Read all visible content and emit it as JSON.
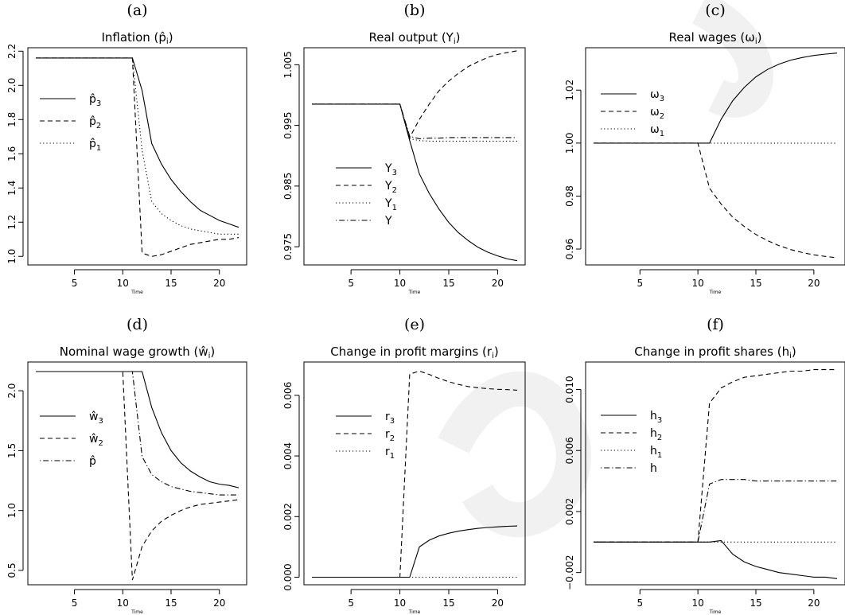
{
  "chart_data": [
    {
      "type": "line",
      "letter": "(a)",
      "title": "Inflation (p̂",
      "title_sub": "i",
      "xlabel": "Time",
      "ylabel": "",
      "xlim": [
        1,
        22
      ],
      "ylim": [
        0.95,
        2.22
      ],
      "xticks": [
        5,
        10,
        15,
        20
      ],
      "yticks": [
        1.0,
        1.2,
        1.4,
        1.6,
        1.8,
        2.0,
        2.2
      ],
      "ytick_labels": [
        "1.0",
        "1.2",
        "1.4",
        "1.6",
        "1.8",
        "2.0",
        "2.2"
      ],
      "legend_position": "top-left",
      "x": [
        1,
        2,
        3,
        4,
        5,
        6,
        7,
        8,
        9,
        10,
        11,
        12,
        13,
        14,
        15,
        16,
        17,
        18,
        19,
        20,
        21,
        22
      ],
      "series": [
        {
          "name": "p̂",
          "name_sub": "3",
          "style": "solid",
          "values": [
            2.16,
            2.16,
            2.16,
            2.16,
            2.16,
            2.16,
            2.16,
            2.16,
            2.16,
            2.16,
            2.16,
            1.97,
            1.66,
            1.54,
            1.45,
            1.38,
            1.32,
            1.27,
            1.24,
            1.21,
            1.19,
            1.17
          ]
        },
        {
          "name": "p̂",
          "name_sub": "2",
          "style": "dashed",
          "values": [
            2.16,
            2.16,
            2.16,
            2.16,
            2.16,
            2.16,
            2.16,
            2.16,
            2.16,
            2.16,
            2.16,
            1.02,
            1.0,
            1.01,
            1.03,
            1.05,
            1.07,
            1.08,
            1.09,
            1.1,
            1.1,
            1.11
          ]
        },
        {
          "name": "p̂",
          "name_sub": "1",
          "style": "dotted",
          "values": [
            2.16,
            2.16,
            2.16,
            2.16,
            2.16,
            2.16,
            2.16,
            2.16,
            2.16,
            2.16,
            2.16,
            1.62,
            1.32,
            1.25,
            1.21,
            1.18,
            1.16,
            1.15,
            1.14,
            1.13,
            1.13,
            1.13
          ]
        }
      ]
    },
    {
      "type": "line",
      "letter": "(b)",
      "title": "Real output (Y",
      "title_sub": "i",
      "xlabel": "Time",
      "ylabel": "",
      "xlim": [
        1,
        22
      ],
      "ylim": [
        0.972,
        1.0078
      ],
      "xticks": [
        5,
        10,
        15,
        20
      ],
      "yticks": [
        0.975,
        0.985,
        0.995,
        1.005
      ],
      "ytick_labels": [
        "0.975",
        "0.985",
        "0.995",
        "1.005"
      ],
      "legend_position": "center-left",
      "x": [
        1,
        2,
        3,
        4,
        5,
        6,
        7,
        8,
        9,
        10,
        11,
        12,
        13,
        14,
        15,
        16,
        17,
        18,
        19,
        20,
        21,
        22
      ],
      "series": [
        {
          "name": "Y",
          "name_sub": "3",
          "style": "solid",
          "values": [
            0.9985,
            0.9985,
            0.9985,
            0.9985,
            0.9985,
            0.9985,
            0.9985,
            0.9985,
            0.9985,
            0.9985,
            0.9925,
            0.987,
            0.9838,
            0.9812,
            0.979,
            0.9773,
            0.976,
            0.9749,
            0.9741,
            0.9735,
            0.973,
            0.9727
          ]
        },
        {
          "name": "Y",
          "name_sub": "2",
          "style": "dashed",
          "values": [
            0.9985,
            0.9985,
            0.9985,
            0.9985,
            0.9985,
            0.9985,
            0.9985,
            0.9985,
            0.9985,
            0.9985,
            0.993,
            0.996,
            0.9985,
            1.0007,
            1.0023,
            1.0036,
            1.0047,
            1.0055,
            1.0062,
            1.0067,
            1.007,
            1.0073
          ]
        },
        {
          "name": "Y",
          "name_sub": "1",
          "style": "dotted",
          "values": [
            0.9985,
            0.9985,
            0.9985,
            0.9985,
            0.9985,
            0.9985,
            0.9985,
            0.9985,
            0.9985,
            0.9985,
            0.9928,
            0.9925,
            0.9924,
            0.9924,
            0.9924,
            0.9924,
            0.9924,
            0.9924,
            0.9924,
            0.9924,
            0.9924,
            0.9924
          ]
        },
        {
          "name": "Y",
          "name_sub": "",
          "style": "dotdash",
          "values": [
            0.9985,
            0.9985,
            0.9985,
            0.9985,
            0.9985,
            0.9985,
            0.9985,
            0.9985,
            0.9985,
            0.9985,
            0.9932,
            0.9928,
            0.9929,
            0.9929,
            0.993,
            0.993,
            0.993,
            0.993,
            0.993,
            0.993,
            0.993,
            0.993
          ]
        }
      ]
    },
    {
      "type": "line",
      "letter": "(c)",
      "title": "Real wages (ω",
      "title_sub": "i",
      "xlabel": "Time",
      "ylabel": "",
      "xlim": [
        1,
        22
      ],
      "ylim": [
        0.954,
        1.036
      ],
      "xticks": [
        5,
        10,
        15,
        20
      ],
      "yticks": [
        0.96,
        0.98,
        1.0,
        1.02
      ],
      "ytick_labels": [
        "0.96",
        "0.98",
        "1.00",
        "1.02"
      ],
      "legend_position": "top-left",
      "x": [
        1,
        2,
        3,
        4,
        5,
        6,
        7,
        8,
        9,
        10,
        11,
        12,
        13,
        14,
        15,
        16,
        17,
        18,
        19,
        20,
        21,
        22
      ],
      "series": [
        {
          "name": "ω",
          "name_sub": "3",
          "style": "solid",
          "values": [
            1.0,
            1.0,
            1.0,
            1.0,
            1.0,
            1.0,
            1.0,
            1.0,
            1.0,
            1.0,
            1.0,
            1.009,
            1.016,
            1.021,
            1.025,
            1.0278,
            1.0298,
            1.0313,
            1.0323,
            1.0331,
            1.0336,
            1.034
          ]
        },
        {
          "name": "ω",
          "name_sub": "2",
          "style": "dashed",
          "values": [
            1.0,
            1.0,
            1.0,
            1.0,
            1.0,
            1.0,
            1.0,
            1.0,
            1.0,
            1.0,
            0.983,
            0.977,
            0.972,
            0.9685,
            0.9655,
            0.9632,
            0.9613,
            0.9598,
            0.9587,
            0.9578,
            0.9572,
            0.9567
          ]
        },
        {
          "name": "ω",
          "name_sub": "1",
          "style": "dotted",
          "values": [
            1.0,
            1.0,
            1.0,
            1.0,
            1.0,
            1.0,
            1.0,
            1.0,
            1.0,
            1.0,
            1.0,
            1.0,
            1.0,
            1.0,
            1.0,
            1.0,
            1.0,
            1.0,
            1.0,
            1.0,
            1.0,
            1.0
          ]
        }
      ]
    },
    {
      "type": "line",
      "letter": "(d)",
      "title": "Nominal wage growth (ŵ",
      "title_sub": "i",
      "xlabel": "Time",
      "ylabel": "",
      "xlim": [
        1,
        22
      ],
      "ylim": [
        0.38,
        2.24
      ],
      "xticks": [
        5,
        10,
        15,
        20
      ],
      "yticks": [
        0.5,
        1.0,
        1.5,
        2.0
      ],
      "ytick_labels": [
        "0.5",
        "1.0",
        "1.5",
        "2.0"
      ],
      "legend_position": "top-left",
      "x": [
        1,
        2,
        3,
        4,
        5,
        6,
        7,
        8,
        9,
        10,
        11,
        12,
        13,
        14,
        15,
        16,
        17,
        18,
        19,
        20,
        21,
        22
      ],
      "series": [
        {
          "name": "ŵ",
          "name_sub": "3",
          "style": "solid",
          "values": [
            2.16,
            2.16,
            2.16,
            2.16,
            2.16,
            2.16,
            2.16,
            2.16,
            2.16,
            2.16,
            2.16,
            2.16,
            1.86,
            1.65,
            1.5,
            1.4,
            1.33,
            1.28,
            1.24,
            1.22,
            1.21,
            1.19
          ]
        },
        {
          "name": "ŵ",
          "name_sub": "2",
          "style": "dashed",
          "values": [
            2.16,
            2.16,
            2.16,
            2.16,
            2.16,
            2.16,
            2.16,
            2.16,
            2.16,
            2.16,
            0.42,
            0.7,
            0.83,
            0.91,
            0.96,
            1.0,
            1.03,
            1.05,
            1.06,
            1.07,
            1.08,
            1.09
          ]
        },
        {
          "name": "p̂",
          "name_sub": "",
          "style": "dotdash",
          "values": [
            2.16,
            2.16,
            2.16,
            2.16,
            2.16,
            2.16,
            2.16,
            2.16,
            2.16,
            2.16,
            2.16,
            1.45,
            1.3,
            1.24,
            1.2,
            1.18,
            1.16,
            1.15,
            1.14,
            1.13,
            1.13,
            1.13
          ]
        }
      ]
    },
    {
      "type": "line",
      "letter": "(e)",
      "title": "Change in profit margins (r",
      "title_sub": "i",
      "xlabel": "Time",
      "ylabel": "",
      "xlim": [
        1,
        22
      ],
      "ylim": [
        -0.00025,
        0.0071
      ],
      "xticks": [
        5,
        10,
        15,
        20
      ],
      "yticks": [
        0.0,
        0.002,
        0.004,
        0.006
      ],
      "ytick_labels": [
        "0.000",
        "0.002",
        "0.004",
        "0.006"
      ],
      "legend_position": "top-left",
      "x": [
        1,
        2,
        3,
        4,
        5,
        6,
        7,
        8,
        9,
        10,
        11,
        12,
        13,
        14,
        15,
        16,
        17,
        18,
        19,
        20,
        21,
        22
      ],
      "series": [
        {
          "name": "r",
          "name_sub": "3",
          "style": "solid",
          "values": [
            0,
            0,
            0,
            0,
            0,
            0,
            0,
            0,
            0,
            0,
            0,
            0.001,
            0.00122,
            0.00136,
            0.00145,
            0.00152,
            0.00157,
            0.00161,
            0.00164,
            0.00166,
            0.00168,
            0.00169
          ]
        },
        {
          "name": "r",
          "name_sub": "2",
          "style": "dashed",
          "values": [
            0,
            0,
            0,
            0,
            0,
            0,
            0,
            0,
            0,
            0,
            0.0067,
            0.0068,
            0.00669,
            0.00656,
            0.00645,
            0.00636,
            0.00629,
            0.00625,
            0.00622,
            0.0062,
            0.00619,
            0.00617
          ]
        },
        {
          "name": "r",
          "name_sub": "1",
          "style": "dotted",
          "values": [
            0,
            0,
            0,
            0,
            0,
            0,
            0,
            0,
            0,
            0,
            0,
            0,
            0,
            0,
            0,
            0,
            0,
            0,
            0,
            0,
            0,
            0
          ]
        }
      ]
    },
    {
      "type": "line",
      "letter": "(f)",
      "title": "Change in profit shares (h",
      "title_sub": "i",
      "xlabel": "Time",
      "ylabel": "",
      "xlim": [
        1,
        22
      ],
      "ylim": [
        -0.0028,
        0.0118
      ],
      "xticks": [
        5,
        10,
        15,
        20
      ],
      "yticks": [
        -0.002,
        0.002,
        0.006,
        0.01
      ],
      "ytick_labels": [
        "−0.002",
        "0.002",
        "0.006",
        "0.010"
      ],
      "legend_position": "top-left",
      "x": [
        1,
        2,
        3,
        4,
        5,
        6,
        7,
        8,
        9,
        10,
        11,
        12,
        13,
        14,
        15,
        16,
        17,
        18,
        19,
        20,
        21,
        22
      ],
      "series": [
        {
          "name": "h",
          "name_sub": "3",
          "style": "solid",
          "values": [
            0,
            0,
            0,
            0,
            0,
            0,
            0,
            0,
            0,
            0,
            0,
            0.0001,
            -0.0008,
            -0.0013,
            -0.0016,
            -0.0018,
            -0.002,
            -0.0021,
            -0.0022,
            -0.0023,
            -0.0023,
            -0.0024
          ]
        },
        {
          "name": "h",
          "name_sub": "2",
          "style": "dashed",
          "values": [
            0,
            0,
            0,
            0,
            0,
            0,
            0,
            0,
            0,
            0,
            0.0091,
            0.0101,
            0.0105,
            0.0108,
            0.0109,
            0.011,
            0.0111,
            0.0112,
            0.0112,
            0.0113,
            0.0113,
            0.0113
          ]
        },
        {
          "name": "h",
          "name_sub": "1",
          "style": "dotted",
          "values": [
            0,
            0,
            0,
            0,
            0,
            0,
            0,
            0,
            0,
            0,
            0,
            0,
            0,
            0,
            0,
            0,
            0,
            0,
            0,
            0,
            0,
            0
          ]
        },
        {
          "name": "h",
          "name_sub": "",
          "style": "dotdash",
          "values": [
            0,
            0,
            0,
            0,
            0,
            0,
            0,
            0,
            0,
            0,
            0.0038,
            0.0041,
            0.0041,
            0.0041,
            0.004,
            0.004,
            0.004,
            0.004,
            0.004,
            0.004,
            0.004,
            0.004
          ]
        }
      ]
    }
  ]
}
